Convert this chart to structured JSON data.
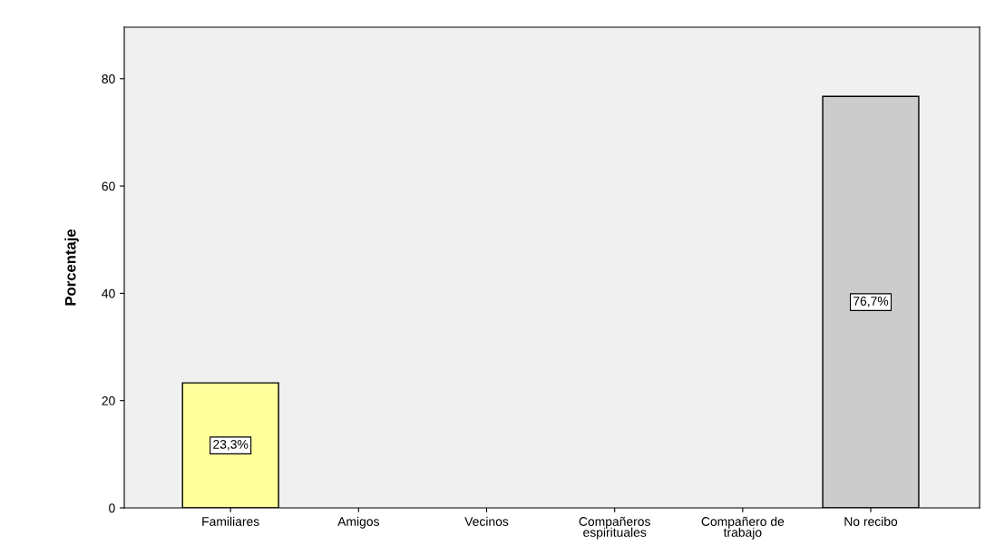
{
  "chart_data": {
    "type": "bar",
    "ylabel": "Porcentaje",
    "categories": [
      "Familiares",
      "Amigos",
      "Vecinos",
      "Compañeros\nespirituales",
      "Compañero de\ntrabajo",
      "No recibo"
    ],
    "values": [
      23.3,
      0,
      0,
      0,
      0,
      76.7
    ],
    "colors": [
      "#ffff9c",
      null,
      null,
      null,
      null,
      "#cccccc"
    ],
    "value_labels": [
      "23,3%",
      null,
      null,
      null,
      null,
      "76,7%"
    ],
    "ylim": [
      0,
      89.6
    ],
    "yticks": [
      0,
      20,
      40,
      60,
      80
    ],
    "grid": false,
    "legend": false
  }
}
